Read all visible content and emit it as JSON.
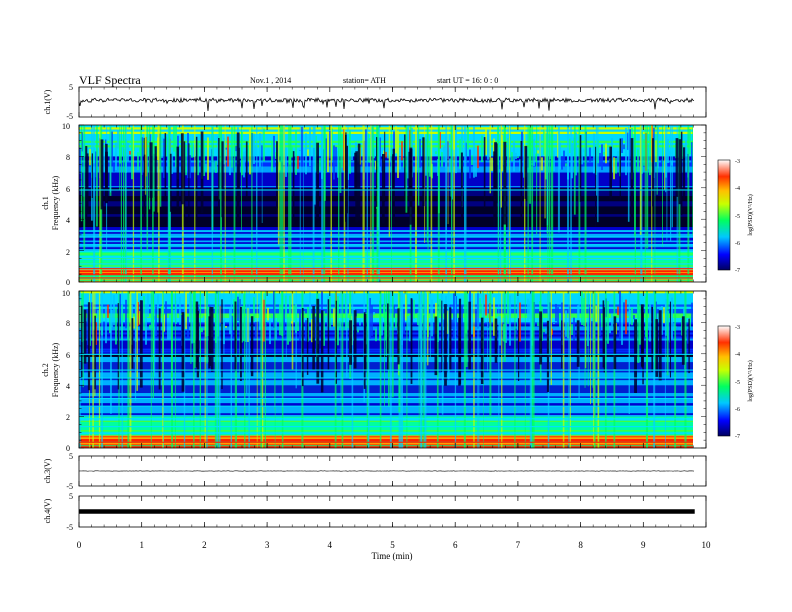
{
  "header": {
    "title": "VLF  Spectra",
    "date": "Nov.1  , 2014",
    "station": "station= ATH",
    "start": "start  UT  =    16: 0  : 0"
  },
  "chart_data": [
    {
      "type": "line",
      "panel": "ch1-waveform",
      "ylabel": "ch.1(V)",
      "yticks": [
        "5",
        "-5"
      ],
      "ylim": [
        -5,
        5
      ],
      "level": 0.6,
      "style": "noisy"
    },
    {
      "type": "heatmap",
      "panel": "ch1-spectrogram",
      "ylabel_line1": "ch.1",
      "ylabel_line2": "Frequency  (kHz)",
      "yticks": [
        "10",
        "8",
        "6",
        "4",
        "2",
        "0"
      ],
      "ylim": [
        0,
        10
      ],
      "colorbar": {
        "label": "log(PSD)(V²/Hz)",
        "ticks": [
          "-3",
          "-4",
          "-5",
          "-6",
          "-7"
        ],
        "range": [
          -7,
          -3
        ],
        "colors": [
          "#000060",
          "#0000ff",
          "#00c8ff",
          "#00ff60",
          "#c8ff00",
          "#ffc000",
          "#ff3000",
          "#ffffff"
        ]
      }
    },
    {
      "type": "heatmap",
      "panel": "ch2-spectrogram",
      "ylabel_line1": "ch.2",
      "ylabel_line2": "Frequency  (kHz)",
      "yticks": [
        "10",
        "8",
        "6",
        "4",
        "2",
        "0"
      ],
      "ylim": [
        0,
        10
      ],
      "colorbar": {
        "label": "log(PSD)(V²/Hz)",
        "ticks": [
          "-3",
          "-4",
          "-5",
          "-6",
          "-7"
        ],
        "range": [
          -7,
          -3
        ]
      }
    },
    {
      "type": "line",
      "panel": "ch3-waveform",
      "ylabel": "ch.3(V)",
      "yticks": [
        "5",
        "-5"
      ],
      "ylim": [
        -5,
        5
      ],
      "level": 0.0,
      "style": "thin"
    },
    {
      "type": "line",
      "panel": "ch4-waveform",
      "ylabel": "ch.4(V)",
      "yticks": [
        "5",
        "-5"
      ],
      "ylim": [
        -5,
        5
      ],
      "level": 0.0,
      "style": "thick"
    }
  ],
  "xaxis": {
    "label": "Time  (min)",
    "ticks": [
      "0",
      "1",
      "2",
      "3",
      "4",
      "5",
      "6",
      "7",
      "8",
      "9",
      "10"
    ],
    "range": [
      0,
      10
    ],
    "data_end": 9.82
  }
}
